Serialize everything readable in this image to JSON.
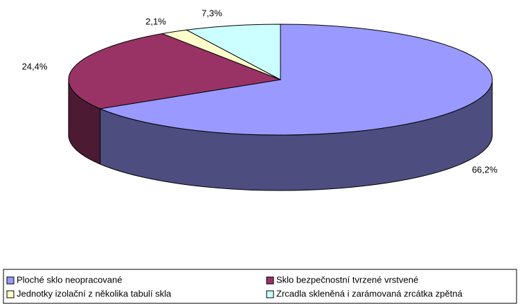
{
  "chart_data": {
    "type": "pie3d",
    "categories": [
      "Ploché sklo neopracované",
      "Sklo bezpečnostní tvrzené vrstvené",
      "Jednotky izolační z několika tabulí skla",
      "Zrcadla skleněná i zarámovaná zrcátka zpětná"
    ],
    "values": [
      66.2,
      24.4,
      2.1,
      7.3
    ],
    "value_labels": [
      "66,2%",
      "24,4%",
      "2,1%",
      "7,3%"
    ],
    "colors": [
      "#9999ff",
      "#993366",
      "#ffffcc",
      "#ccffff"
    ],
    "legend": "bottom"
  }
}
